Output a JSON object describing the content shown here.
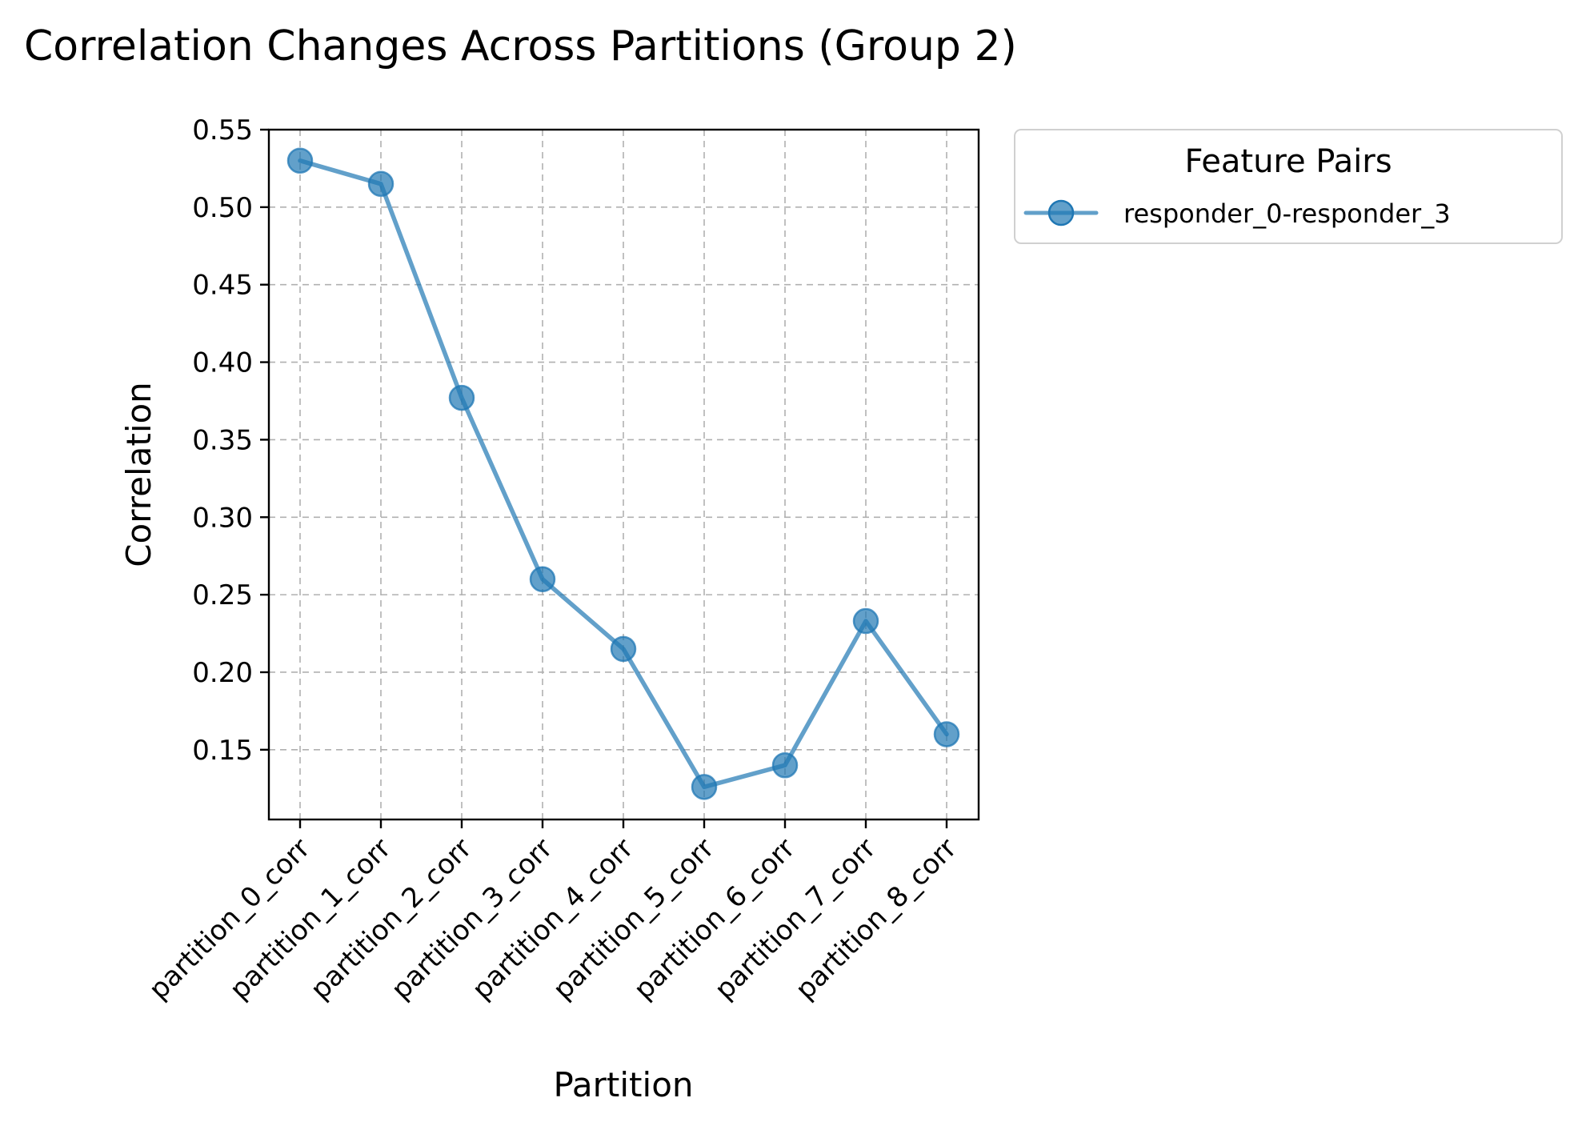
{
  "chart_data": {
    "type": "line",
    "title": "Correlation Changes Across Partitions (Group 2)",
    "xlabel": "Partition",
    "ylabel": "Correlation",
    "categories": [
      "partition_0_corr",
      "partition_1_corr",
      "partition_2_corr",
      "partition_3_corr",
      "partition_4_corr",
      "partition_5_corr",
      "partition_6_corr",
      "partition_7_corr",
      "partition_8_corr"
    ],
    "series": [
      {
        "name": "responder_0-responder_3",
        "values": [
          0.53,
          0.515,
          0.377,
          0.26,
          0.215,
          0.126,
          0.14,
          0.233,
          0.16
        ],
        "color": "#1f77b4",
        "marker": "circle"
      }
    ],
    "ylim": [
      0.105,
      0.55
    ],
    "yticks": [
      "0.15",
      "0.20",
      "0.25",
      "0.30",
      "0.35",
      "0.40",
      "0.45",
      "0.50",
      "0.55"
    ],
    "grid": true,
    "legend": {
      "title": "Feature Pairs",
      "placement": "outside-top-right"
    }
  }
}
